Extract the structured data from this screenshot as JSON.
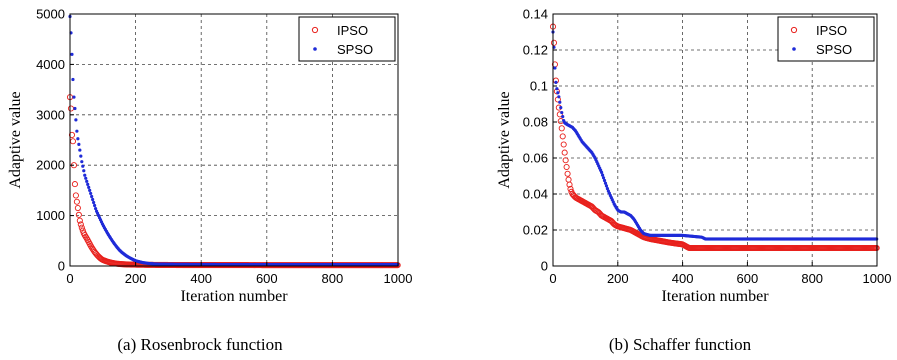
{
  "chart_data": [
    {
      "type": "scatter",
      "caption": "(a)  Rosenbrock function",
      "xlabel": "Iteration number",
      "ylabel": "Adaptive value",
      "xlim": [
        0,
        1000
      ],
      "ylim": [
        0,
        5000
      ],
      "xticks": [
        "0",
        "200",
        "400",
        "600",
        "800",
        "1000"
      ],
      "yticks": [
        "0",
        "1000",
        "2000",
        "3000",
        "4000",
        "5000"
      ],
      "grid": true,
      "legend_position": "top-right",
      "series": [
        {
          "name": "IPSO",
          "marker": "circle",
          "color": "#e8201c",
          "points": [
            [
              0,
              3350
            ],
            [
              2,
              3300
            ],
            [
              4,
              2950
            ],
            [
              6,
              2600
            ],
            [
              8,
              2500
            ],
            [
              10,
              2450
            ],
            [
              12,
              2000
            ],
            [
              14,
              1750
            ],
            [
              16,
              1500
            ],
            [
              18,
              1400
            ],
            [
              20,
              1300
            ],
            [
              22,
              1250
            ],
            [
              24,
              1150
            ],
            [
              26,
              1050
            ],
            [
              28,
              980
            ],
            [
              30,
              900
            ],
            [
              34,
              800
            ],
            [
              38,
              720
            ],
            [
              42,
              650
            ],
            [
              46,
              600
            ],
            [
              50,
              560
            ],
            [
              55,
              500
            ],
            [
              60,
              440
            ],
            [
              65,
              380
            ],
            [
              70,
              330
            ],
            [
              75,
              280
            ],
            [
              80,
              240
            ],
            [
              85,
              200
            ],
            [
              90,
              170
            ],
            [
              95,
              140
            ],
            [
              100,
              120
            ],
            [
              110,
              95
            ],
            [
              120,
              75
            ],
            [
              130,
              60
            ],
            [
              140,
              48
            ],
            [
              150,
              40
            ],
            [
              170,
              32
            ],
            [
              190,
              28
            ],
            [
              220,
              25
            ],
            [
              260,
              22
            ],
            [
              300,
              20
            ],
            [
              400,
              18
            ],
            [
              500,
              18
            ],
            [
              600,
              17
            ],
            [
              700,
              17
            ],
            [
              800,
              17
            ],
            [
              900,
              17
            ],
            [
              1000,
              17
            ]
          ]
        },
        {
          "name": "SPSO",
          "marker": "dot",
          "color": "#1f2bd8",
          "points": [
            [
              0,
              4950
            ],
            [
              2,
              4800
            ],
            [
              4,
              4450
            ],
            [
              6,
              4200
            ],
            [
              8,
              3900
            ],
            [
              10,
              3500
            ],
            [
              14,
              3200
            ],
            [
              18,
              2900
            ],
            [
              22,
              2600
            ],
            [
              26,
              2450
            ],
            [
              30,
              2300
            ],
            [
              35,
              2100
            ],
            [
              40,
              1950
            ],
            [
              45,
              1800
            ],
            [
              50,
              1700
            ],
            [
              55,
              1600
            ],
            [
              60,
              1500
            ],
            [
              65,
              1400
            ],
            [
              70,
              1300
            ],
            [
              75,
              1200
            ],
            [
              80,
              1100
            ],
            [
              85,
              1030
            ],
            [
              90,
              960
            ],
            [
              95,
              890
            ],
            [
              100,
              820
            ],
            [
              110,
              700
            ],
            [
              120,
              590
            ],
            [
              130,
              490
            ],
            [
              140,
              400
            ],
            [
              150,
              320
            ],
            [
              160,
              260
            ],
            [
              170,
              210
            ],
            [
              180,
              170
            ],
            [
              190,
              135
            ],
            [
              200,
              105
            ],
            [
              220,
              70
            ],
            [
              240,
              50
            ],
            [
              260,
              40
            ],
            [
              300,
              35
            ],
            [
              350,
              32
            ],
            [
              400,
              30
            ],
            [
              500,
              28
            ],
            [
              600,
              28
            ],
            [
              700,
              27
            ],
            [
              800,
              27
            ],
            [
              900,
              27
            ],
            [
              1000,
              27
            ]
          ]
        }
      ]
    },
    {
      "type": "scatter",
      "caption": "(b)  Schaffer function",
      "xlabel": "Iteration number",
      "ylabel": "Adaptive value",
      "xlim": [
        0,
        1000
      ],
      "ylim": [
        0,
        0.14
      ],
      "xticks": [
        "0",
        "200",
        "400",
        "600",
        "800",
        "1000"
      ],
      "yticks": [
        "0",
        "0.02",
        "0.04",
        "0.06",
        "0.08",
        "0.1",
        "0.12",
        "0.14"
      ],
      "grid": true,
      "legend_position": "top-right",
      "series": [
        {
          "name": "IPSO",
          "marker": "circle",
          "color": "#e8201c",
          "points": [
            [
              0,
              0.133
            ],
            [
              2,
              0.128
            ],
            [
              4,
              0.12
            ],
            [
              6,
              0.112
            ],
            [
              8,
              0.106
            ],
            [
              10,
              0.1
            ],
            [
              14,
              0.094
            ],
            [
              18,
              0.088
            ],
            [
              22,
              0.083
            ],
            [
              26,
              0.078
            ],
            [
              30,
              0.072
            ],
            [
              34,
              0.066
            ],
            [
              38,
              0.06
            ],
            [
              42,
              0.055
            ],
            [
              46,
              0.05
            ],
            [
              50,
              0.046
            ],
            [
              55,
              0.042
            ],
            [
              60,
              0.04
            ],
            [
              70,
              0.038
            ],
            [
              80,
              0.037
            ],
            [
              90,
              0.036
            ],
            [
              100,
              0.035
            ],
            [
              110,
              0.034
            ],
            [
              120,
              0.033
            ],
            [
              130,
              0.031
            ],
            [
              140,
              0.03
            ],
            [
              150,
              0.028
            ],
            [
              160,
              0.027
            ],
            [
              170,
              0.026
            ],
            [
              180,
              0.025
            ],
            [
              190,
              0.023
            ],
            [
              200,
              0.022
            ],
            [
              220,
              0.021
            ],
            [
              240,
              0.02
            ],
            [
              260,
              0.018
            ],
            [
              280,
              0.016
            ],
            [
              300,
              0.015
            ],
            [
              330,
              0.014
            ],
            [
              360,
              0.013
            ],
            [
              400,
              0.012
            ],
            [
              420,
              0.01
            ],
            [
              500,
              0.01
            ],
            [
              600,
              0.01
            ],
            [
              700,
              0.01
            ],
            [
              800,
              0.01
            ],
            [
              900,
              0.01
            ],
            [
              1000,
              0.01
            ]
          ]
        },
        {
          "name": "SPSO",
          "marker": "dot",
          "color": "#1f2bd8",
          "points": [
            [
              0,
              0.13
            ],
            [
              2,
              0.125
            ],
            [
              4,
              0.118
            ],
            [
              6,
              0.11
            ],
            [
              8,
              0.104
            ],
            [
              10,
              0.1
            ],
            [
              14,
              0.097
            ],
            [
              18,
              0.094
            ],
            [
              22,
              0.09
            ],
            [
              26,
              0.086
            ],
            [
              30,
              0.083
            ],
            [
              34,
              0.08
            ],
            [
              40,
              0.079
            ],
            [
              50,
              0.078
            ],
            [
              60,
              0.077
            ],
            [
              70,
              0.075
            ],
            [
              80,
              0.072
            ],
            [
              90,
              0.069
            ],
            [
              100,
              0.067
            ],
            [
              110,
              0.065
            ],
            [
              120,
              0.063
            ],
            [
              130,
              0.06
            ],
            [
              140,
              0.056
            ],
            [
              150,
              0.052
            ],
            [
              160,
              0.047
            ],
            [
              170,
              0.042
            ],
            [
              180,
              0.038
            ],
            [
              190,
              0.034
            ],
            [
              200,
              0.031
            ],
            [
              210,
              0.03
            ],
            [
              220,
              0.03
            ],
            [
              230,
              0.029
            ],
            [
              240,
              0.028
            ],
            [
              250,
              0.026
            ],
            [
              260,
              0.023
            ],
            [
              270,
              0.02
            ],
            [
              280,
              0.018
            ],
            [
              300,
              0.017
            ],
            [
              350,
              0.017
            ],
            [
              400,
              0.017
            ],
            [
              460,
              0.016
            ],
            [
              470,
              0.015
            ],
            [
              500,
              0.015
            ],
            [
              600,
              0.015
            ],
            [
              700,
              0.015
            ],
            [
              800,
              0.015
            ],
            [
              900,
              0.015
            ],
            [
              1000,
              0.015
            ]
          ]
        }
      ]
    }
  ]
}
